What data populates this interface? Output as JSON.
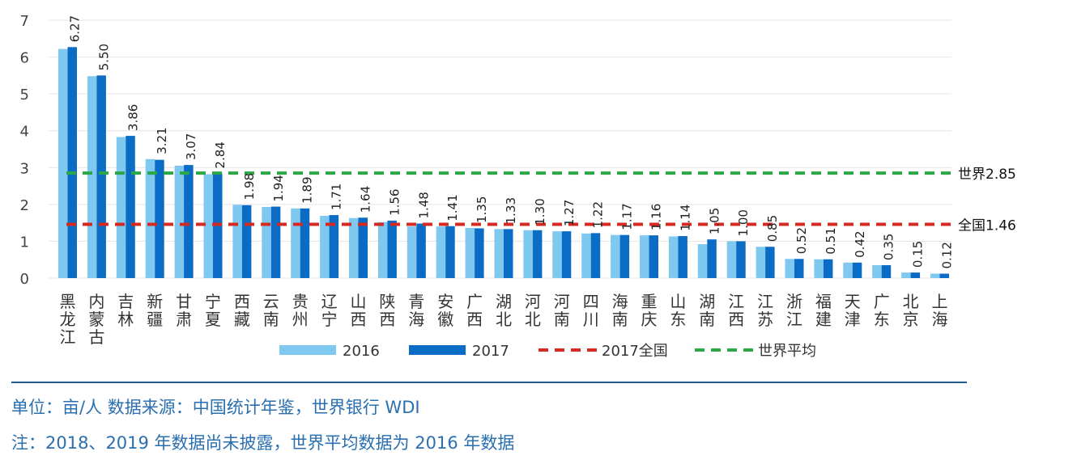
{
  "chart_data": {
    "type": "bar",
    "categories": [
      "黑龙江",
      "内蒙古",
      "吉林",
      "新疆",
      "甘肃",
      "宁夏",
      "西藏",
      "云南",
      "贵州",
      "辽宁",
      "山西",
      "陕西",
      "青海",
      "安徽",
      "广西",
      "湖北",
      "河北",
      "河南",
      "四川",
      "海南",
      "重庆",
      "山东",
      "湖南",
      "江西",
      "江苏",
      "浙江",
      "福建",
      "天津",
      "广东",
      "北京",
      "上海"
    ],
    "series": [
      {
        "name": "2016",
        "color": "#7fc8f0",
        "values": [
          6.22,
          5.48,
          3.83,
          3.23,
          3.05,
          2.82,
          1.99,
          1.93,
          1.89,
          1.69,
          1.63,
          1.52,
          1.4,
          1.4,
          1.36,
          1.33,
          1.3,
          1.27,
          1.21,
          1.17,
          1.16,
          1.13,
          0.92,
          1.0,
          0.85,
          0.52,
          0.51,
          0.42,
          0.35,
          0.15,
          0.12
        ]
      },
      {
        "name": "2017",
        "color": "#0a6cc4",
        "values": [
          6.27,
          5.5,
          3.86,
          3.21,
          3.07,
          2.84,
          1.98,
          1.94,
          1.89,
          1.71,
          1.64,
          1.56,
          1.48,
          1.41,
          1.35,
          1.33,
          1.3,
          1.27,
          1.22,
          1.17,
          1.16,
          1.14,
          1.05,
          1.0,
          0.85,
          0.52,
          0.51,
          0.42,
          0.35,
          0.15,
          0.12
        ]
      }
    ],
    "data_labels": [
      "6.27",
      "5.50",
      "3.86",
      "3.21",
      "3.07",
      "2.84",
      "1.98",
      "1.94",
      "1.89",
      "1.71",
      "1.64",
      "1.56",
      "1.48",
      "1.41",
      "1.35",
      "1.33",
      "1.30",
      "1.27",
      "1.22",
      "1.17",
      "1.16",
      "1.14",
      "1.05",
      "1.00",
      "0.85",
      "0.52",
      "0.51",
      "0.42",
      "0.35",
      "0.15",
      "0.12"
    ],
    "reference_lines": [
      {
        "name": "世界平均",
        "value": 2.85,
        "label": "世界2.85",
        "color": "#2aa845"
      },
      {
        "name": "2017全国",
        "value": 1.46,
        "label": "全国1.46",
        "color": "#d42a22"
      }
    ],
    "ylim": [
      0,
      7
    ],
    "yticks": [
      "0",
      "1",
      "2",
      "3",
      "4",
      "5",
      "6",
      "7"
    ],
    "grid": true,
    "legend_position": "bottom"
  },
  "notes": {
    "line1": "单位：亩/人  数据来源：中国统计年鉴，世界银行 WDI",
    "line2": "注：2018、2019 年数据尚未披露，世界平均数据为 2016 年数据"
  }
}
